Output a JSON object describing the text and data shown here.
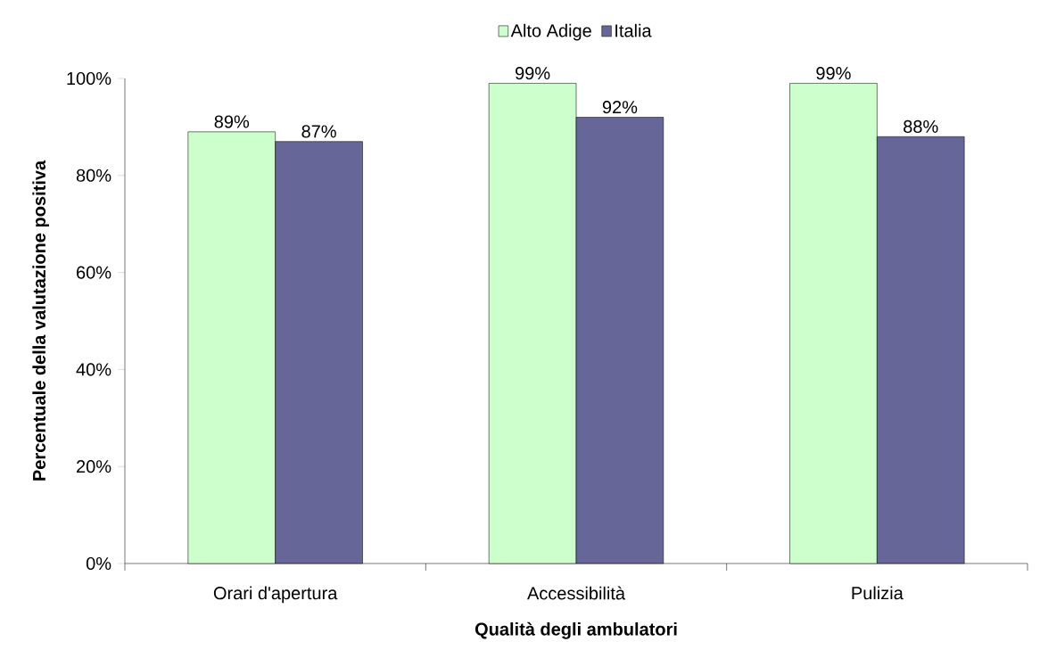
{
  "chart_data": {
    "type": "bar",
    "xlabel": "Qualità degli ambulatori",
    "ylabel": "Percentuale della valutazione positiva",
    "categories": [
      "Orari d'apertura",
      "Accessibilità",
      "Pulizia"
    ],
    "series": [
      {
        "name": "Alto Adige",
        "color": "#ccffcc",
        "values": [
          89,
          99,
          99
        ],
        "value_labels": [
          "89%",
          "99%",
          "99%"
        ]
      },
      {
        "name": "Italia",
        "color": "#666699",
        "values": [
          87,
          92,
          88
        ],
        "value_labels": [
          "87%",
          "92%",
          "88%"
        ]
      }
    ],
    "ylim": [
      0,
      100
    ],
    "yticks": [
      {
        "value": 0,
        "label": "0%"
      },
      {
        "value": 20,
        "label": "20%"
      },
      {
        "value": 40,
        "label": "40%"
      },
      {
        "value": 60,
        "label": "60%"
      },
      {
        "value": 80,
        "label": "80%"
      },
      {
        "value": 100,
        "label": "100%"
      }
    ],
    "legend": "top",
    "grid": false
  }
}
